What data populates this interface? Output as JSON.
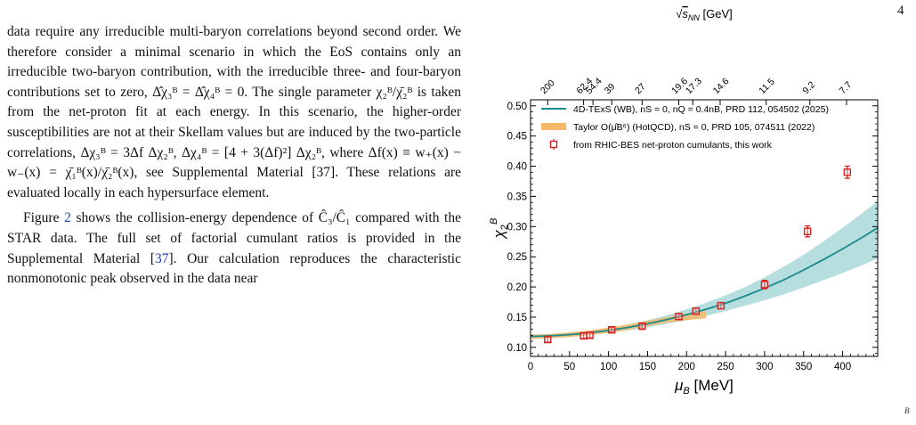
{
  "page": {
    "number": "4",
    "corner_mark": "B"
  },
  "text": {
    "para1": "data require any irreducible multi-baryon correlations beyond second order. We therefore consider a minimal scenario in which the EoS contains only an irreducible two-baryon contribution, with the irreducible three- and four-baryon contributions set to zero, Δ̂χ₃ᴮ = Δ̂χ₄ᴮ = 0. The single parameter χ₂ᴮ/χ̄₂ᴮ is taken from the net-proton fit at each energy. In this scenario, the higher-order susceptibilities are not at their Skellam values but are induced by the two-particle correlations, Δχ₃ᴮ = 3Δf Δχ₂ᴮ, Δχ₄ᴮ = [4 + 3(Δf)²] Δχ₂ᴮ, where Δf(x) ≡ w₊(x) − w₋(x) = χ̄₁ᴮ(x)/χ̄₂ᴮ(x), see Supplemental Material [37]. These relations are evaluated locally in each hypersurface element.",
    "para2_a": "Figure ",
    "para2_fig": "2",
    "para2_b": " shows the collision-energy dependence of Ĉ₃/Ĉ₁ compared with the STAR data. The full set of factorial cumulant ratios is provided in the Supplemental Material [",
    "para2_ref": "37",
    "para2_c": "]. Our calculation reproduces the characteristic nonmonotonic peak observed in the data near"
  },
  "chart_data": {
    "type": "line",
    "xlabel": "μB [MeV]",
    "ylabel": "χ2B",
    "top_axis_label": "√sNN [GeV]",
    "xlim": [
      0,
      445
    ],
    "ylim": [
      0.085,
      0.51
    ],
    "x_ticks": [
      0,
      50,
      100,
      150,
      200,
      250,
      300,
      350,
      400
    ],
    "y_ticks": [
      0.1,
      0.15,
      0.2,
      0.25,
      0.3,
      0.35,
      0.4,
      0.45,
      0.5
    ],
    "y_tick_labels": [
      "0.10",
      "0.15",
      "0.20",
      "0.25",
      "0.30",
      "0.35",
      "0.40",
      "0.45",
      "0.50"
    ],
    "top_ticks": [
      {
        "label": "200",
        "mu_b": 22
      },
      {
        "label": "62.4",
        "mu_b": 68
      },
      {
        "label": "54.4",
        "mu_b": 80
      },
      {
        "label": "39",
        "mu_b": 104
      },
      {
        "label": "27",
        "mu_b": 143
      },
      {
        "label": "19.6",
        "mu_b": 190
      },
      {
        "label": "17.3",
        "mu_b": 208
      },
      {
        "label": "14.6",
        "mu_b": 243
      },
      {
        "label": "11.5",
        "mu_b": 302
      },
      {
        "label": "9.2",
        "mu_b": 358
      },
      {
        "label": "7.7",
        "mu_b": 405
      }
    ],
    "legend": [
      {
        "label": "4D-TExS (WB), nS = 0, nQ = 0.4nB, PRD 112, 054502 (2025)",
        "kind": "line",
        "color": "#1a8a8a"
      },
      {
        "label": "Taylor O(μ̂B⁶) (HotQCD), nS = 0, PRD 105, 074511 (2022)",
        "kind": "band",
        "color": "#f6b86a"
      },
      {
        "label": "from RHIC-BES net-proton cumulants, this work",
        "kind": "marker",
        "color": "#d62020"
      }
    ],
    "series": [
      {
        "name": "4D-TExS (WB), nS = 0, nQ = 0.4nB, PRD 112, 054502 (2025)",
        "type": "line_band",
        "color": "#1a8a8a",
        "band_color": "#9fd3d3",
        "x": [
          0,
          25,
          50,
          75,
          100,
          125,
          150,
          175,
          200,
          225,
          250,
          275,
          300,
          325,
          350,
          375,
          400,
          425,
          445
        ],
        "y": [
          0.118,
          0.119,
          0.121,
          0.124,
          0.128,
          0.133,
          0.139,
          0.146,
          0.154,
          0.163,
          0.173,
          0.185,
          0.198,
          0.212,
          0.228,
          0.245,
          0.263,
          0.282,
          0.298
        ],
        "band_low": [
          0.115,
          0.116,
          0.118,
          0.121,
          0.124,
          0.128,
          0.133,
          0.139,
          0.145,
          0.152,
          0.16,
          0.169,
          0.178,
          0.188,
          0.199,
          0.211,
          0.223,
          0.236,
          0.247
        ],
        "band_high": [
          0.121,
          0.122,
          0.124,
          0.127,
          0.132,
          0.138,
          0.145,
          0.153,
          0.163,
          0.174,
          0.186,
          0.2,
          0.216,
          0.234,
          0.253,
          0.275,
          0.298,
          0.322,
          0.342
        ]
      },
      {
        "name": "Taylor O(μ̂B⁶) (HotQCD), nS = 0, PRD 105, 074511 (2022)",
        "type": "band",
        "color": "#f6b86a",
        "x": [
          0,
          25,
          50,
          75,
          100,
          125,
          150,
          175,
          200,
          225
        ],
        "band_low": [
          0.114,
          0.115,
          0.117,
          0.12,
          0.124,
          0.129,
          0.135,
          0.141,
          0.145,
          0.148
        ],
        "band_high": [
          0.121,
          0.122,
          0.125,
          0.128,
          0.133,
          0.138,
          0.144,
          0.15,
          0.156,
          0.16
        ]
      },
      {
        "name": "from RHIC-BES net-proton cumulants, this work",
        "type": "scatter",
        "color": "#d62020",
        "x": [
          22,
          68,
          76,
          104,
          143,
          190,
          212,
          244,
          300,
          355,
          406
        ],
        "y": [
          0.113,
          0.119,
          0.12,
          0.129,
          0.135,
          0.151,
          0.16,
          0.169,
          0.204,
          0.292,
          0.39
        ],
        "yerr": [
          0.004,
          0.004,
          0.004,
          0.004,
          0.004,
          0.005,
          0.005,
          0.005,
          0.007,
          0.009,
          0.01
        ]
      }
    ]
  }
}
